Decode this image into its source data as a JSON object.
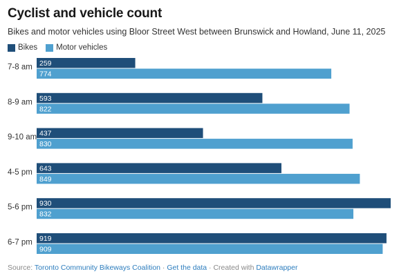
{
  "header": {
    "title": "Cyclist and vehicle count",
    "subtitle": "Bikes and motor vehicles using Bloor Street West between Brunswick and Howland, June 11, 2025"
  },
  "legend": {
    "bikes_label": "Bikes",
    "motor_label": "Motor vehicles"
  },
  "colors": {
    "bikes": "#1f4e79",
    "motor": "#4fa0cf"
  },
  "chart_data": {
    "type": "bar",
    "orientation": "horizontal",
    "categories": [
      "7-8 am",
      "8-9 am",
      "9-10 am",
      "4-5 pm",
      "5-6 pm",
      "6-7 pm"
    ],
    "series": [
      {
        "name": "Bikes",
        "values": [
          259,
          593,
          437,
          643,
          930,
          919
        ]
      },
      {
        "name": "Motor vehicles",
        "values": [
          774,
          822,
          830,
          849,
          832,
          909
        ]
      }
    ],
    "title": "Cyclist and vehicle count",
    "legend_position": "top-left",
    "data_labels": true,
    "grid": false
  },
  "footer": {
    "source_prefix": "Source: ",
    "source_link": "Toronto Community Bikeways Coalition",
    "sep1": " · ",
    "data_link": "Get the data",
    "sep2": " · Created with ",
    "tool_link": "Datawrapper"
  }
}
